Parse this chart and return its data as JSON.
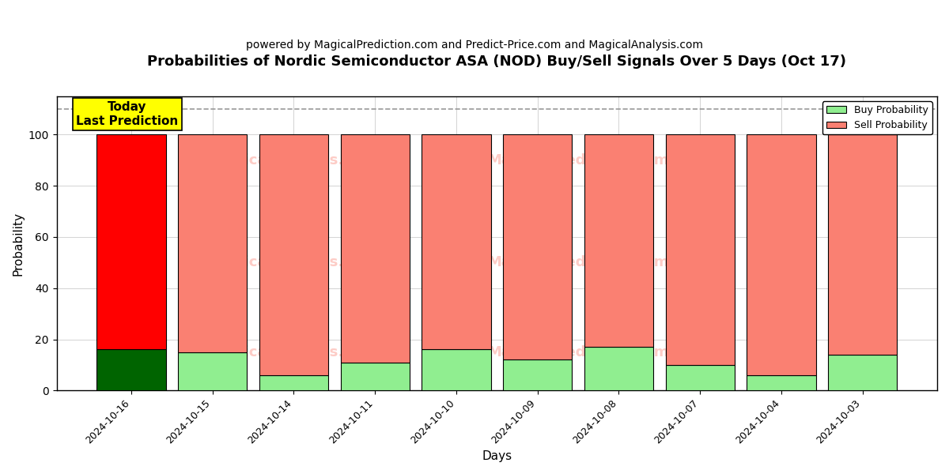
{
  "title": "Probabilities of Nordic Semiconductor ASA (NOD) Buy/Sell Signals Over 5 Days (Oct 17)",
  "subtitle": "powered by MagicalPrediction.com and Predict-Price.com and MagicalAnalysis.com",
  "xlabel": "Days",
  "ylabel": "Probability",
  "dates": [
    "2024-10-16",
    "2024-10-15",
    "2024-10-14",
    "2024-10-11",
    "2024-10-10",
    "2024-10-09",
    "2024-10-08",
    "2024-10-07",
    "2024-10-04",
    "2024-10-03"
  ],
  "buy_probs": [
    16,
    15,
    6,
    11,
    16,
    12,
    17,
    10,
    6,
    14
  ],
  "sell_probs": [
    84,
    85,
    94,
    89,
    84,
    88,
    83,
    90,
    94,
    86
  ],
  "today_buy_color": "#006400",
  "today_sell_color": "#ff0000",
  "buy_color": "#90EE90",
  "sell_color": "#FA8072",
  "today_annotation_bg": "#ffff00",
  "today_annotation_text": "Today\nLast Prediction",
  "dashed_line_y": 110,
  "dashed_line_color": "#999999",
  "ylim": [
    0,
    115
  ],
  "yticks": [
    0,
    20,
    40,
    60,
    80,
    100
  ],
  "legend_buy_label": "Buy Probability",
  "legend_sell_label": "Sell Probability",
  "bar_width": 0.85,
  "bar_edge_color": "black",
  "bar_edge_width": 0.8,
  "watermark_color": "#FA8072",
  "watermark_alpha": 0.4,
  "title_fontsize": 13,
  "subtitle_fontsize": 10,
  "axis_label_fontsize": 11,
  "tick_fontsize": 9
}
